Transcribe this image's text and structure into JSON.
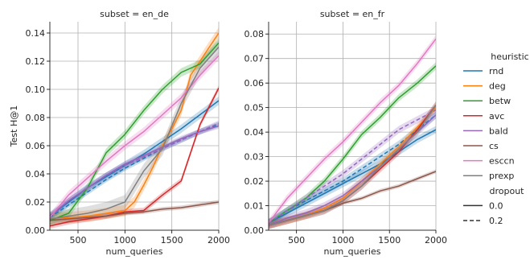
{
  "chart_data": {
    "type": "line",
    "legend": {
      "title": "heuristic",
      "subtitle": "dropout",
      "dropout_entries": [
        {
          "label": "0.0",
          "dash": "solid"
        },
        {
          "label": "0.2",
          "dash": "dashed"
        }
      ],
      "placement": "right"
    },
    "colors": {
      "rnd": "#1f77b4",
      "deg": "#ff7f0e",
      "betw": "#2ca02c",
      "avc": "#d62728",
      "bald": "#9467bd",
      "cs": "#8c564b",
      "esccn": "#e377c2",
      "prexp": "#7f7f7f"
    },
    "heuristics": [
      "rnd",
      "deg",
      "betw",
      "avc",
      "bald",
      "cs",
      "esccn",
      "prexp"
    ],
    "panels": [
      {
        "title": "subset = en_de",
        "xlabel": "num_queries",
        "ylabel": "Test H@1",
        "xlim": [
          200,
          2000
        ],
        "ylim": [
          0,
          0.148
        ],
        "xticks": [
          500,
          1000,
          1500,
          2000
        ],
        "yticks": [
          0.0,
          0.02,
          0.04,
          0.06,
          0.08,
          0.1,
          0.12,
          0.14
        ],
        "ytick_labels": [
          "0.00",
          "0.02",
          "0.04",
          "0.06",
          "0.08",
          "0.10",
          "0.12",
          "0.14"
        ],
        "grid": true,
        "series": [
          {
            "heuristic": "rnd",
            "dropout": "0.0",
            "x": [
              200,
              400,
              600,
              800,
              1000,
              1200,
              1400,
              1600,
              1800,
              2000
            ],
            "y": [
              0.01,
              0.02,
              0.03,
              0.038,
              0.046,
              0.054,
              0.063,
              0.072,
              0.082,
              0.092
            ],
            "band": 0.003
          },
          {
            "heuristic": "rnd",
            "dropout": "0.2",
            "x": [
              200,
              400,
              600,
              800,
              1000,
              1200,
              1400,
              1600,
              1800,
              2000
            ],
            "y": [
              0.009,
              0.018,
              0.027,
              0.036,
              0.044,
              0.051,
              0.058,
              0.064,
              0.07,
              0.075
            ],
            "band": 0.002
          },
          {
            "heuristic": "deg",
            "dropout": "0.0",
            "x": [
              200,
              400,
              600,
              800,
              1000,
              1100,
              1200,
              1300,
              1400,
              1500,
              1600,
              1700,
              1800,
              1900,
              2000
            ],
            "y": [
              0.008,
              0.009,
              0.01,
              0.012,
              0.014,
              0.02,
              0.032,
              0.045,
              0.06,
              0.072,
              0.085,
              0.11,
              0.12,
              0.13,
              0.14
            ],
            "band": 0.004
          },
          {
            "heuristic": "betw",
            "dropout": "0.0",
            "x": [
              200,
              400,
              600,
              800,
              1000,
              1200,
              1400,
              1600,
              1800,
              2000
            ],
            "y": [
              0.007,
              0.012,
              0.03,
              0.055,
              0.068,
              0.085,
              0.1,
              0.112,
              0.118,
              0.133
            ],
            "band": 0.003
          },
          {
            "heuristic": "avc",
            "dropout": "0.0",
            "x": [
              200,
              400,
              600,
              800,
              1000,
              1200,
              1400,
              1600,
              1800,
              2000
            ],
            "y": [
              0.003,
              0.006,
              0.008,
              0.01,
              0.013,
              0.014,
              0.025,
              0.035,
              0.075,
              0.101
            ],
            "band": 0.002
          },
          {
            "heuristic": "bald",
            "dropout": "0.0",
            "x": [
              200,
              400,
              600,
              800,
              1000,
              1200,
              1400,
              1600,
              1800,
              2000
            ],
            "y": [
              0.01,
              0.021,
              0.03,
              0.039,
              0.047,
              0.053,
              0.059,
              0.065,
              0.07,
              0.074
            ],
            "band": 0.002
          },
          {
            "heuristic": "bald",
            "dropout": "0.2",
            "x": [
              200,
              400,
              600,
              800,
              1000,
              1200,
              1400,
              1600,
              1800,
              2000
            ],
            "y": [
              0.01,
              0.021,
              0.03,
              0.039,
              0.046,
              0.052,
              0.058,
              0.064,
              0.07,
              0.076
            ],
            "band": 0.002
          },
          {
            "heuristic": "cs",
            "dropout": "0.0",
            "x": [
              200,
              400,
              600,
              800,
              1000,
              1200,
              1400,
              1600,
              1800,
              2000
            ],
            "y": [
              0.007,
              0.008,
              0.009,
              0.01,
              0.012,
              0.013,
              0.015,
              0.016,
              0.018,
              0.02
            ],
            "band": 0.0015
          },
          {
            "heuristic": "esccn",
            "dropout": "0.0",
            "x": [
              200,
              400,
              600,
              800,
              1000,
              1200,
              1400,
              1600,
              1800,
              2000
            ],
            "y": [
              0.009,
              0.025,
              0.037,
              0.049,
              0.06,
              0.07,
              0.082,
              0.094,
              0.11,
              0.124
            ],
            "band": 0.003
          },
          {
            "heuristic": "prexp",
            "dropout": "0.0",
            "x": [
              200,
              400,
              600,
              800,
              1000,
              1200,
              1400,
              1600,
              1800,
              2000
            ],
            "y": [
              0.008,
              0.01,
              0.012,
              0.015,
              0.02,
              0.042,
              0.058,
              0.09,
              0.115,
              0.13
            ],
            "band": 0.005
          }
        ]
      },
      {
        "title": "subset = en_fr",
        "xlabel": "num_queries",
        "ylabel": "",
        "xlim": [
          200,
          2000
        ],
        "ylim": [
          0,
          0.085
        ],
        "xticks": [
          500,
          1000,
          1500,
          2000
        ],
        "yticks": [
          0.0,
          0.01,
          0.02,
          0.03,
          0.04,
          0.05,
          0.06,
          0.07,
          0.08
        ],
        "ytick_labels": [
          "0.00",
          "0.01",
          "0.02",
          "0.03",
          "0.04",
          "0.05",
          "0.06",
          "0.07",
          "0.08"
        ],
        "grid": true,
        "series": [
          {
            "heuristic": "rnd",
            "dropout": "0.0",
            "x": [
              200,
              400,
              600,
              800,
              1000,
              1200,
              1400,
              1600,
              1800,
              2000
            ],
            "y": [
              0.003,
              0.007,
              0.011,
              0.015,
              0.019,
              0.023,
              0.027,
              0.032,
              0.037,
              0.041
            ],
            "band": 0.0015
          },
          {
            "heuristic": "rnd",
            "dropout": "0.2",
            "x": [
              200,
              400,
              600,
              800,
              1000,
              1200,
              1400,
              1600,
              1800,
              2000
            ],
            "y": [
              0.003,
              0.008,
              0.012,
              0.016,
              0.02,
              0.025,
              0.03,
              0.035,
              0.041,
              0.047
            ],
            "band": 0.0015
          },
          {
            "heuristic": "deg",
            "dropout": "0.0",
            "x": [
              200,
              400,
              600,
              800,
              1000,
              1200,
              1400,
              1600,
              1800,
              2000
            ],
            "y": [
              0.002,
              0.004,
              0.006,
              0.009,
              0.013,
              0.02,
              0.027,
              0.034,
              0.042,
              0.05
            ],
            "band": 0.0015
          },
          {
            "heuristic": "betw",
            "dropout": "0.0",
            "x": [
              200,
              400,
              600,
              800,
              1000,
              1200,
              1400,
              1600,
              1800,
              2000
            ],
            "y": [
              0.003,
              0.008,
              0.013,
              0.02,
              0.029,
              0.039,
              0.046,
              0.054,
              0.06,
              0.067
            ],
            "band": 0.0015
          },
          {
            "heuristic": "avc",
            "dropout": "0.0",
            "x": [
              200,
              400,
              600,
              800,
              1000,
              1200,
              1400,
              1600,
              1800,
              2000
            ],
            "y": [
              0.002,
              0.004,
              0.006,
              0.008,
              0.012,
              0.018,
              0.025,
              0.032,
              0.041,
              0.051
            ],
            "band": 0.0015
          },
          {
            "heuristic": "bald",
            "dropout": "0.0",
            "x": [
              200,
              400,
              600,
              800,
              1000,
              1200,
              1400,
              1600,
              1800,
              2000
            ],
            "y": [
              0.002,
              0.005,
              0.007,
              0.01,
              0.014,
              0.02,
              0.026,
              0.033,
              0.04,
              0.047
            ],
            "band": 0.0015
          },
          {
            "heuristic": "bald",
            "dropout": "0.2",
            "x": [
              200,
              400,
              600,
              800,
              1000,
              1200,
              1400,
              1600,
              1800,
              2000
            ],
            "y": [
              0.003,
              0.008,
              0.013,
              0.018,
              0.023,
              0.029,
              0.035,
              0.041,
              0.045,
              0.049
            ],
            "band": 0.0015
          },
          {
            "heuristic": "cs",
            "dropout": "0.0",
            "x": [
              200,
              400,
              600,
              800,
              1000,
              1200,
              1400,
              1600,
              1800,
              2000
            ],
            "y": [
              0.002,
              0.004,
              0.006,
              0.008,
              0.011,
              0.013,
              0.016,
              0.018,
              0.021,
              0.024
            ],
            "band": 0.0008
          },
          {
            "heuristic": "esccn",
            "dropout": "0.0",
            "x": [
              200,
              400,
              600,
              800,
              1000,
              1200,
              1400,
              1600,
              1800,
              2000
            ],
            "y": [
              0.003,
              0.013,
              0.021,
              0.029,
              0.036,
              0.044,
              0.052,
              0.059,
              0.068,
              0.078
            ],
            "band": 0.0015
          },
          {
            "heuristic": "prexp",
            "dropout": "0.0",
            "x": [
              200,
              400,
              600,
              800,
              1000,
              1200,
              1400,
              1600,
              1800,
              2000
            ],
            "y": [
              0.002,
              0.004,
              0.006,
              0.008,
              0.012,
              0.018,
              0.026,
              0.033,
              0.04,
              0.051
            ],
            "band": 0.0015
          }
        ]
      }
    ]
  }
}
